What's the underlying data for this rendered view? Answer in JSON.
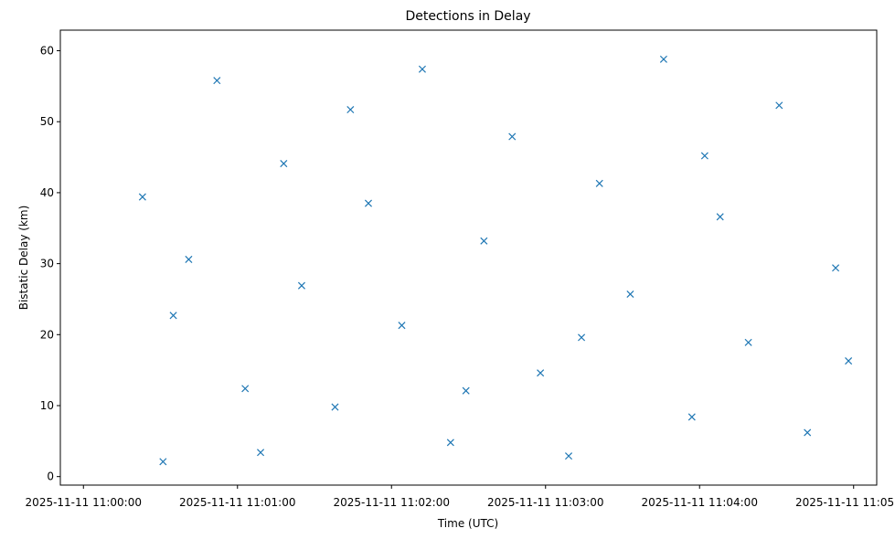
{
  "chart_data": {
    "type": "scatter",
    "title": "Detections in Delay",
    "xlabel": "Time (UTC)",
    "ylabel": "Bistatic Delay (km)",
    "x_unit": "time",
    "xlim": [
      "2025-11-11 10:59:51",
      "2025-11-11 11:05:09"
    ],
    "ylim": [
      -1.2,
      62.9
    ],
    "x_ticks": [
      "2025-11-11 11:00:00",
      "2025-11-11 11:01:00",
      "2025-11-11 11:02:00",
      "2025-11-11 11:03:00",
      "2025-11-11 11:04:00",
      "2025-11-11 11:05:00"
    ],
    "x_tick_labels": [
      "2025-11-11 11:00:00",
      "2025-11-11 11:01:00",
      "2025-11-11 11:02:00",
      "2025-11-11 11:03:00",
      "2025-11-11 11:04:00",
      "2025-11-11 11:05:00"
    ],
    "y_ticks": [
      0,
      10,
      20,
      30,
      40,
      50,
      60
    ],
    "grid": false,
    "marker": "x",
    "marker_color": "#1f77b4",
    "series": [
      {
        "points": [
          [
            "2025-11-11 11:00:31",
            2.1
          ],
          [
            "2025-11-11 11:00:41",
            30.6
          ],
          [
            "2025-11-11 11:00:52",
            55.8
          ],
          [
            "2025-11-11 11:01:03",
            12.4
          ],
          [
            "2025-11-11 11:01:18",
            44.1
          ],
          [
            "2025-11-11 11:01:25",
            26.9
          ],
          [
            "2025-11-11 11:01:38",
            9.8
          ],
          [
            "2025-11-11 11:01:51",
            38.5
          ],
          [
            "2025-11-11 11:02:04",
            21.3
          ],
          [
            "2025-11-11 11:02:12",
            57.4
          ],
          [
            "2025-11-11 11:02:23",
            4.8
          ],
          [
            "2025-11-11 11:02:36",
            33.2
          ],
          [
            "2025-11-11 11:02:47",
            47.9
          ],
          [
            "2025-11-11 11:02:58",
            14.6
          ],
          [
            "2025-11-11 11:03:09",
            2.9
          ],
          [
            "2025-11-11 11:03:21",
            41.3
          ],
          [
            "2025-11-11 11:03:33",
            25.7
          ],
          [
            "2025-11-11 11:03:46",
            58.8
          ],
          [
            "2025-11-11 11:03:57",
            8.4
          ],
          [
            "2025-11-11 11:04:08",
            36.6
          ],
          [
            "2025-11-11 11:04:19",
            18.9
          ],
          [
            "2025-11-11 11:04:31",
            52.3
          ],
          [
            "2025-11-11 11:04:42",
            6.2
          ],
          [
            "2025-11-11 11:04:53",
            29.4
          ],
          [
            "2025-11-11 11:00:23",
            39.4
          ],
          [
            "2025-11-11 11:00:35",
            22.7
          ],
          [
            "2025-11-11 11:01:09",
            3.4
          ],
          [
            "2025-11-11 11:01:44",
            51.7
          ],
          [
            "2025-11-11 11:02:29",
            12.1
          ],
          [
            "2025-11-11 11:03:14",
            19.6
          ],
          [
            "2025-11-11 11:04:02",
            45.2
          ],
          [
            "2025-11-11 11:04:58",
            16.3
          ]
        ]
      }
    ]
  }
}
